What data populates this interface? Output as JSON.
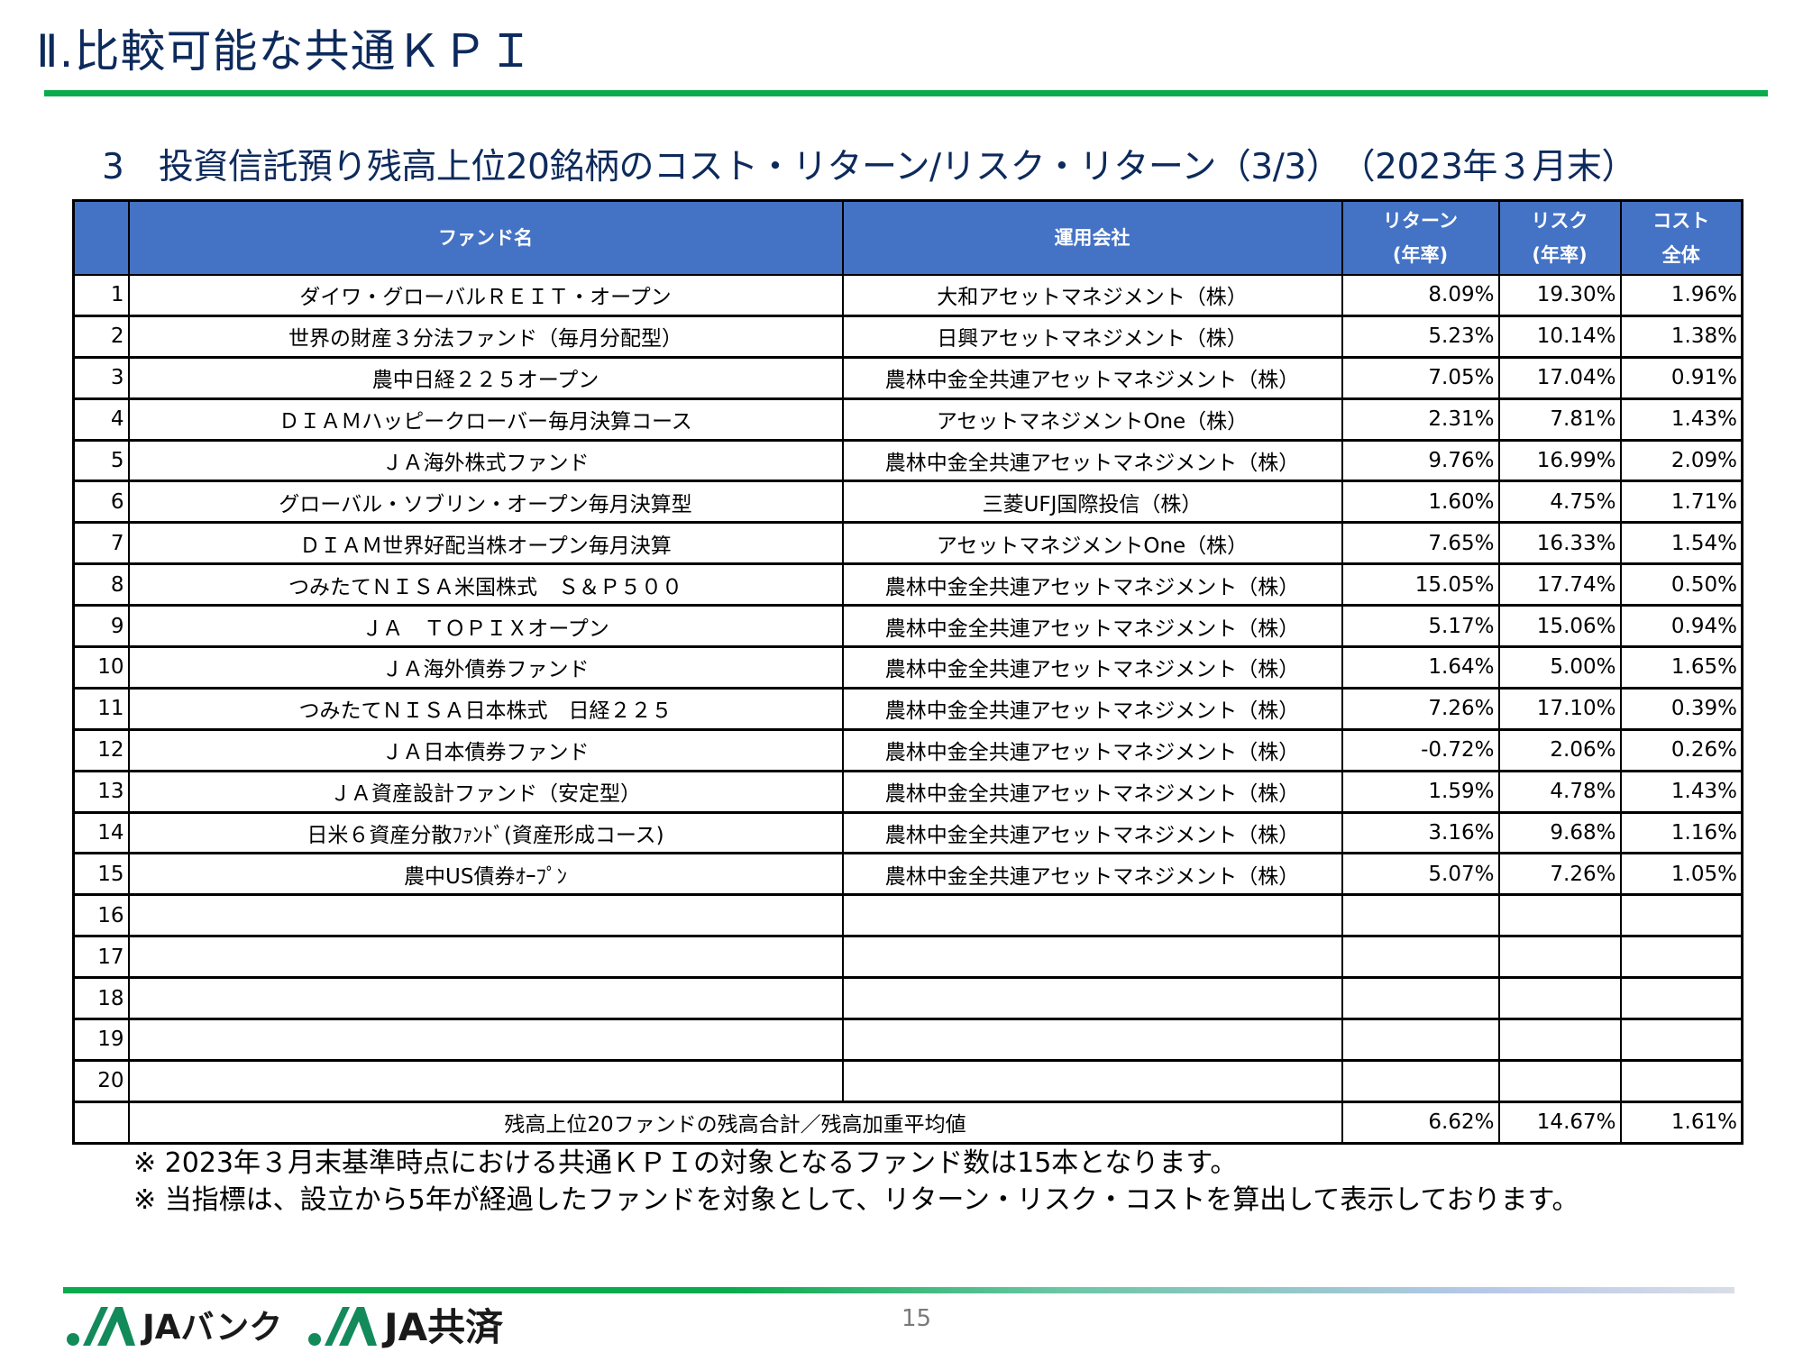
{
  "page": {
    "title": "Ⅱ.比較可能な共通ＫＰＩ",
    "section_title": "3　投資信託預り残高上位20銘柄のコスト・リターン/リスク・リターン（3/3）　（2023年３月末）",
    "page_number": "15"
  },
  "colors": {
    "title_text": "#0d2a5c",
    "accent_green": "#0aab4d",
    "header_blue": "#4472c4"
  },
  "table": {
    "headers": {
      "no": "",
      "fund_name": "ファンド名",
      "company": "運用会社",
      "return_line1": "リターン",
      "return_line2": "(年率)",
      "risk_line1": "リスク",
      "risk_line2": "(年率)",
      "cost_line1": "コスト",
      "cost_line2": "全体"
    },
    "rows": [
      {
        "no": "1",
        "fund": "ダイワ・グローバルＲＥＩＴ・オープン",
        "company": "大和アセットマネジメント（株）",
        "return": "8.09%",
        "risk": "19.30%",
        "cost": "1.96%"
      },
      {
        "no": "2",
        "fund": "世界の財産３分法ファンド（毎月分配型）",
        "company": "日興アセットマネジメント（株）",
        "return": "5.23%",
        "risk": "10.14%",
        "cost": "1.38%"
      },
      {
        "no": "3",
        "fund": "農中日経２２５オープン",
        "company": "農林中金全共連アセットマネジメント（株）",
        "return": "7.05%",
        "risk": "17.04%",
        "cost": "0.91%"
      },
      {
        "no": "4",
        "fund": "ＤＩＡＭハッピークローバー毎月決算コース",
        "company": "アセットマネジメントOne（株）",
        "return": "2.31%",
        "risk": "7.81%",
        "cost": "1.43%"
      },
      {
        "no": "5",
        "fund": "ＪＡ海外株式ファンド",
        "company": "農林中金全共連アセットマネジメント（株）",
        "return": "9.76%",
        "risk": "16.99%",
        "cost": "2.09%"
      },
      {
        "no": "6",
        "fund": "グローバル・ソブリン・オープン毎月決算型",
        "company": "三菱UFJ国際投信（株）",
        "return": "1.60%",
        "risk": "4.75%",
        "cost": "1.71%"
      },
      {
        "no": "7",
        "fund": "ＤＩＡＭ世界好配当株オープン毎月決算",
        "company": "アセットマネジメントOne（株）",
        "return": "7.65%",
        "risk": "16.33%",
        "cost": "1.54%"
      },
      {
        "no": "8",
        "fund": "つみたてＮＩＳＡ米国株式　Ｓ＆Ｐ５００",
        "company": "農林中金全共連アセットマネジメント（株）",
        "return": "15.05%",
        "risk": "17.74%",
        "cost": "0.50%"
      },
      {
        "no": "9",
        "fund": "ＪＡ　ＴＯＰＩＸオープン",
        "company": "農林中金全共連アセットマネジメント（株）",
        "return": "5.17%",
        "risk": "15.06%",
        "cost": "0.94%"
      },
      {
        "no": "10",
        "fund": "ＪＡ海外債券ファンド",
        "company": "農林中金全共連アセットマネジメント（株）",
        "return": "1.64%",
        "risk": "5.00%",
        "cost": "1.65%"
      },
      {
        "no": "11",
        "fund": "つみたてＮＩＳＡ日本株式　日経２２５",
        "company": "農林中金全共連アセットマネジメント（株）",
        "return": "7.26%",
        "risk": "17.10%",
        "cost": "0.39%"
      },
      {
        "no": "12",
        "fund": "ＪＡ日本債券ファンド",
        "company": "農林中金全共連アセットマネジメント（株）",
        "return": "-0.72%",
        "risk": "2.06%",
        "cost": "0.26%"
      },
      {
        "no": "13",
        "fund": "ＪＡ資産設計ファンド（安定型）",
        "company": "農林中金全共連アセットマネジメント（株）",
        "return": "1.59%",
        "risk": "4.78%",
        "cost": "1.43%"
      },
      {
        "no": "14",
        "fund": "日米６資産分散ﾌｧﾝﾄﾞ(資産形成コース)",
        "company": "農林中金全共連アセットマネジメント（株）",
        "return": "3.16%",
        "risk": "9.68%",
        "cost": "1.16%"
      },
      {
        "no": "15",
        "fund": "農中US債券ｵｰﾌﾟﾝ",
        "company": "農林中金全共連アセットマネジメント（株）",
        "return": "5.07%",
        "risk": "7.26%",
        "cost": "1.05%"
      },
      {
        "no": "16",
        "fund": "",
        "company": "",
        "return": "",
        "risk": "",
        "cost": ""
      },
      {
        "no": "17",
        "fund": "",
        "company": "",
        "return": "",
        "risk": "",
        "cost": ""
      },
      {
        "no": "18",
        "fund": "",
        "company": "",
        "return": "",
        "risk": "",
        "cost": ""
      },
      {
        "no": "19",
        "fund": "",
        "company": "",
        "return": "",
        "risk": "",
        "cost": ""
      },
      {
        "no": "20",
        "fund": "",
        "company": "",
        "return": "",
        "risk": "",
        "cost": ""
      }
    ],
    "summary": {
      "label": "残高上位20ファンドの残高合計／残高加重平均値",
      "return": "6.62%",
      "risk": "14.67%",
      "cost": "1.61%"
    }
  },
  "notes": [
    "※ 2023年３月末基準時点における共通ＫＰＩの対象となるファンド数は15本となります。",
    "※ 当指標は、設立から5年が経過したファンドを対象として、リターン・リスク・コストを算出して表示しております。"
  ],
  "footer": {
    "logo_bank": "JAバンク",
    "logo_kyosai": "JA共済"
  }
}
